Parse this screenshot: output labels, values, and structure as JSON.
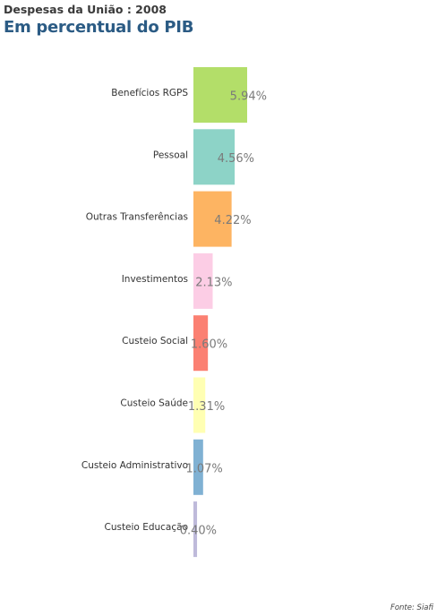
{
  "header": {
    "supertitle": "Despesas da União : 2008",
    "title": "Em percentual do PIB"
  },
  "source": "Fonte: Siafi",
  "chart_data": {
    "type": "bar",
    "orientation": "horizontal",
    "title": "Em percentual do PIB",
    "categories": [
      "Benefícios RGPS",
      "Pessoal",
      "Outras Transferências",
      "Investimentos",
      "Custeio Social",
      "Custeio Saúde",
      "Custeio Administrativo",
      "Custeio Educação"
    ],
    "values": [
      5.94,
      4.56,
      4.22,
      2.13,
      1.6,
      1.31,
      1.07,
      0.4
    ],
    "labels": [
      "5.94%",
      "4.56%",
      "4.22%",
      "2.13%",
      "1.60%",
      "1.31%",
      "1.07%",
      "0.40%"
    ],
    "colors": [
      "#b3de69",
      "#8dd3c7",
      "#fdb462",
      "#fccde5",
      "#fb8072",
      "#ffffb3",
      "#80b1d3",
      "#bebada"
    ],
    "grid": false,
    "legend": "none"
  }
}
